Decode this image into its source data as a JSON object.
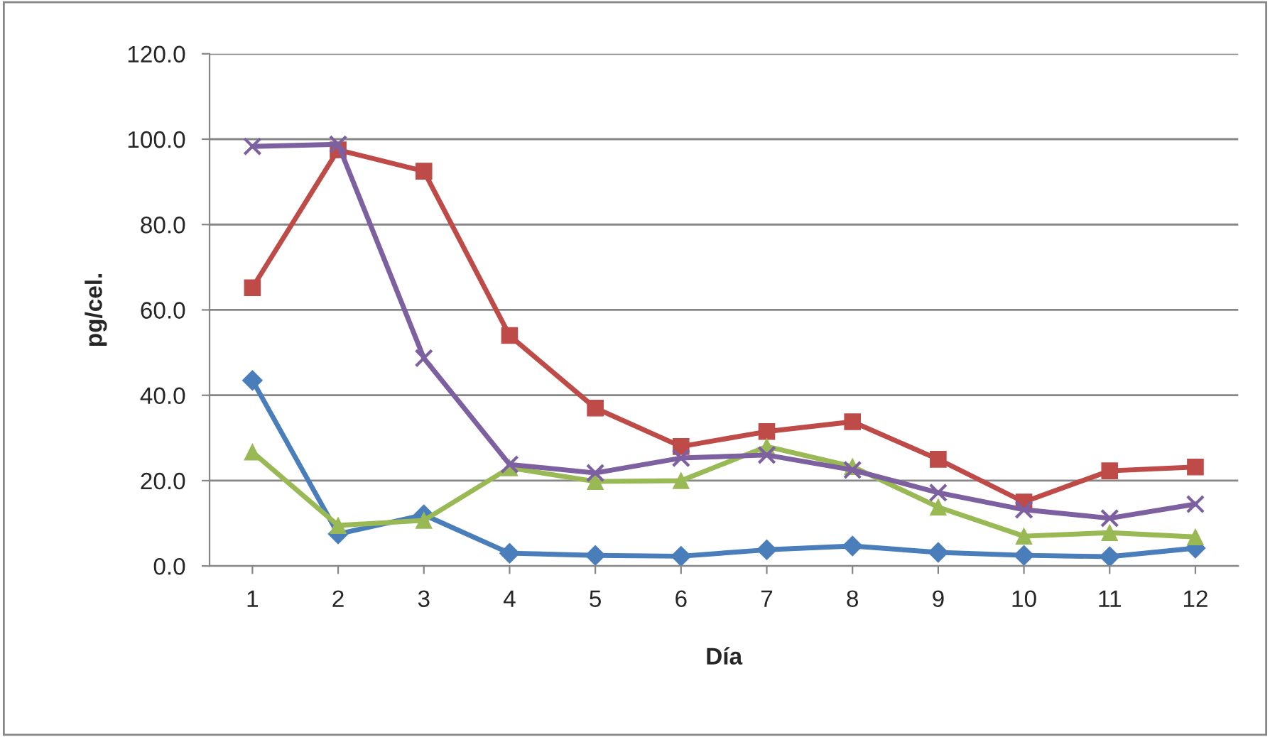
{
  "chart_data": {
    "type": "line",
    "xlabel": "Día",
    "ylabel": "pg/cel.",
    "categories": [
      "1",
      "2",
      "3",
      "4",
      "5",
      "6",
      "7",
      "8",
      "9",
      "10",
      "11",
      "12"
    ],
    "series": [
      {
        "color": "#4a7ebb",
        "marker": "diamond",
        "values": [
          43.5,
          7.5,
          12,
          3,
          2.5,
          2.3,
          3.8,
          4.7,
          3.2,
          2.5,
          2.2,
          4.2
        ]
      },
      {
        "color": "#be4b48",
        "marker": "square",
        "values": [
          65.2,
          97.5,
          92.5,
          54,
          37,
          28,
          31.5,
          33.8,
          25,
          15,
          22.3,
          23.2
        ]
      },
      {
        "color": "#98b954",
        "marker": "triangle",
        "values": [
          26.7,
          9.5,
          10.7,
          23,
          19.8,
          20,
          28,
          23.3,
          13.8,
          7,
          7.8,
          6.8
        ]
      },
      {
        "color": "#7d60a0",
        "marker": "cross",
        "values": [
          98.3,
          98.8,
          48.7,
          23.8,
          21.8,
          25.3,
          26,
          22.5,
          17.2,
          13.2,
          11.2,
          14.5
        ]
      }
    ],
    "ylim": [
      0,
      120
    ],
    "yticks": [
      {
        "value": 0,
        "label": "0.0"
      },
      {
        "value": 20,
        "label": "20.0"
      },
      {
        "value": 40,
        "label": "40.0"
      },
      {
        "value": 60,
        "label": "60.0"
      },
      {
        "value": 80,
        "label": "80.0"
      },
      {
        "value": 100,
        "label": "100.0"
      },
      {
        "value": 120,
        "label": "120.0"
      }
    ],
    "grid": "y",
    "legend": false
  }
}
